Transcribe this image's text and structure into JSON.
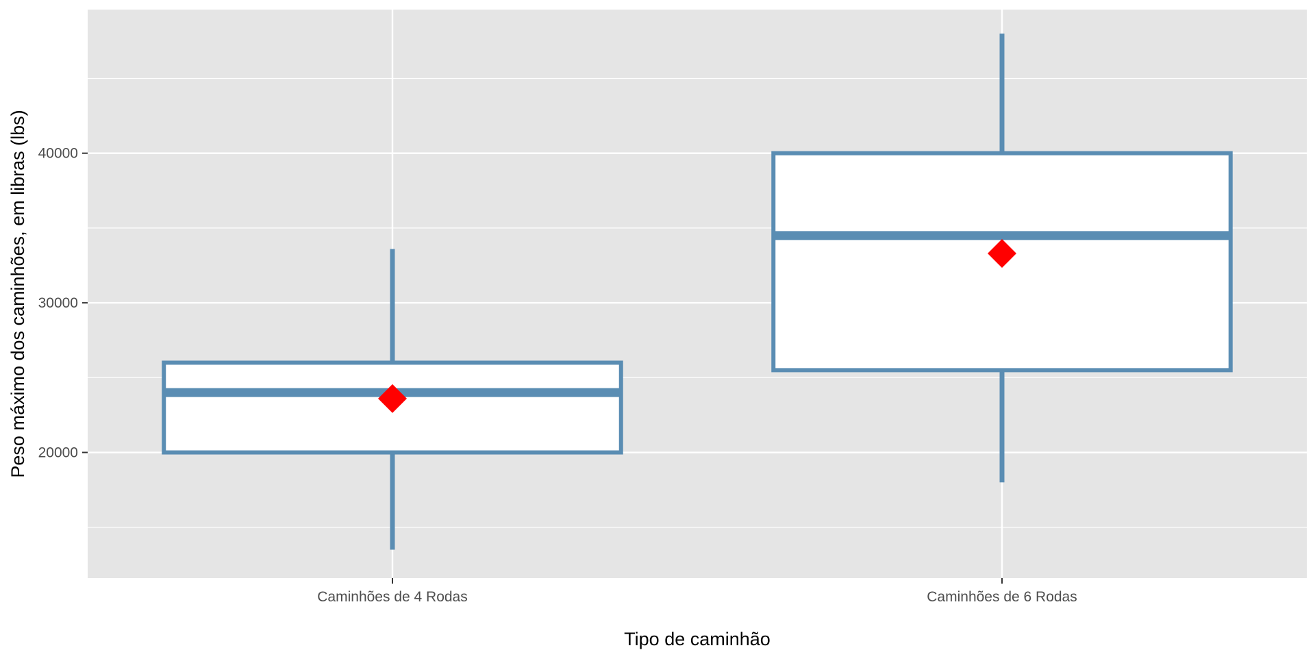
{
  "chart_data": {
    "type": "boxplot",
    "xlabel": "Tipo de caminhão",
    "ylabel": "Peso máximo dos caminhões, em libras (lbs)",
    "ylim": [
      11600,
      49600
    ],
    "y_ticks": [
      20000,
      30000,
      40000
    ],
    "y_tick_labels": [
      "20000",
      "30000",
      "40000"
    ],
    "categories": [
      "Caminhões de 4 Rodas",
      "Caminhões de 6 Rodas"
    ],
    "boxes": [
      {
        "category": "Caminhões de 4 Rodas",
        "whisker_low": 13500,
        "q1": 20000,
        "median": 24000,
        "q3": 26000,
        "whisker_high": 33600,
        "mean": 23600
      },
      {
        "category": "Caminhões de 6 Rodas",
        "whisker_low": 18000,
        "q1": 25500,
        "median": 34500,
        "q3": 40000,
        "whisker_high": 48000,
        "mean": 33300
      }
    ],
    "grid": true,
    "legend": "none",
    "colors": {
      "panel": "#e5e5e5",
      "grid": "#ffffff",
      "box_outline": "#5a8db3",
      "box_fill": "#ffffff",
      "mean_marker": "#ff0000"
    }
  }
}
